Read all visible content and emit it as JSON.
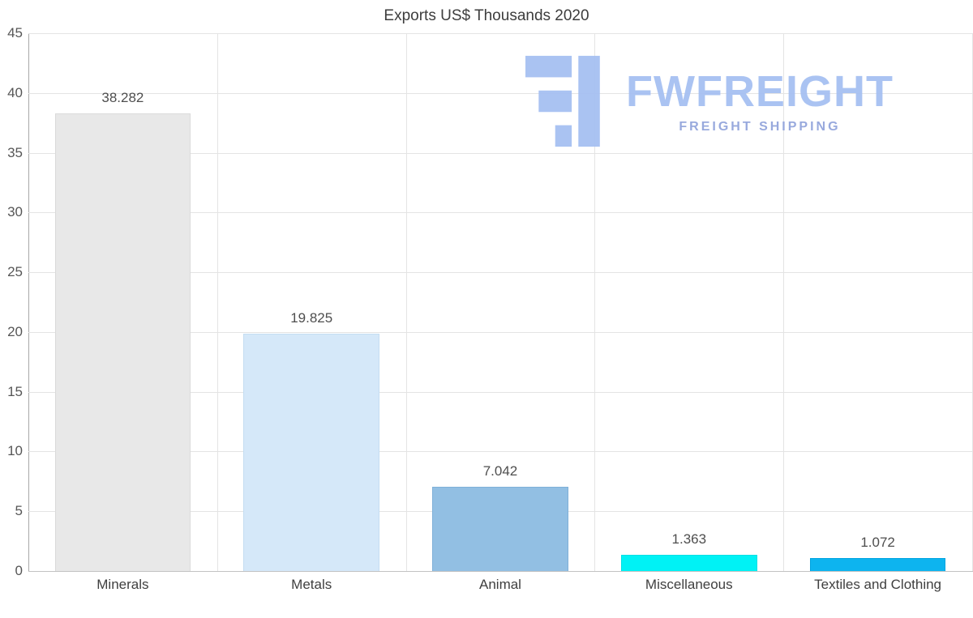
{
  "chart_data": {
    "type": "bar",
    "title": "Exports US$ Thousands 2020",
    "categories": [
      "Minerals",
      "Metals",
      "Animal",
      "Miscellaneous",
      "Textiles and Clothing"
    ],
    "values": [
      38.282,
      19.825,
      7.042,
      1.363,
      1.072
    ],
    "value_labels": [
      "38.282",
      "19.825",
      "7.042",
      "1.363",
      "1.072"
    ],
    "bar_colors": [
      "#e8e8e8",
      "#d5e8f9",
      "#92bfe3",
      "#00f2f5",
      "#0db4ef"
    ],
    "bar_border_colors": [
      "#dadada",
      "#c4ddf2",
      "#7fb0d8",
      "#00dfe4",
      "#00a4e0"
    ],
    "ylim": [
      0,
      45
    ],
    "yticks": [
      0,
      5,
      10,
      15,
      20,
      25,
      30,
      35,
      40,
      45
    ],
    "grid": true,
    "legend_position": "none",
    "xlabel": "",
    "ylabel": ""
  },
  "watermark": {
    "brand": "FWFREIGHT",
    "tagline": "FREIGHT SHIPPING",
    "brand_color": "#a6c0f2",
    "tagline_color": "#93a5dc"
  }
}
